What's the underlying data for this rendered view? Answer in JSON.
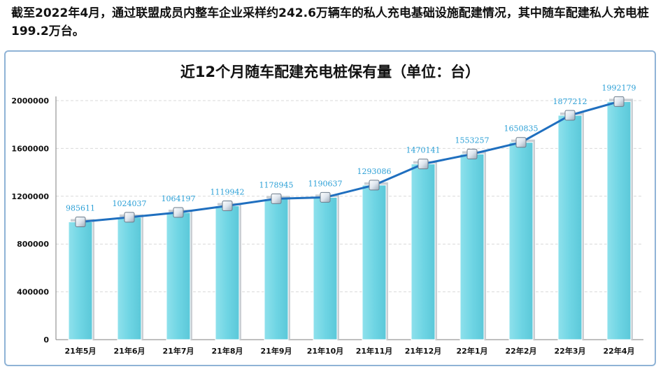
{
  "intro_text": "截至2022年4月，通过联盟成员内整车企业采样约242.6万辆车的私人充电基础设施配建情况，其中随车配建私人充电桩199.2万台。",
  "colors": {
    "bar_fill": "#6fd5e4",
    "bar_shadow": "#c9ced3",
    "line": "#1f6fbf",
    "data_label": "#2a9fd6",
    "frame_border": "#8fb3d6",
    "grid": "#d9d9d9"
  },
  "chart_data": {
    "type": "bar",
    "title": "近12个月随车配建充电桩保有量（单位：台）",
    "categories": [
      "21年5月",
      "21年6月",
      "21年7月",
      "21年8月",
      "21年9月",
      "21年10月",
      "21年11月",
      "21年12月",
      "22年1月",
      "22年2月",
      "22年3月",
      "22年4月"
    ],
    "values": [
      985611,
      1024037,
      1064197,
      1119942,
      1178945,
      1190637,
      1293086,
      1470141,
      1553257,
      1650835,
      1877212,
      1992179
    ],
    "data_labels": [
      "985611",
      "1024037",
      "1064197",
      "1119942",
      "1178945",
      "1190637",
      "1293086",
      "1470141",
      "1553257",
      "1650835",
      "1877212",
      "1992179"
    ],
    "overlay": "line with square markers through bar tops",
    "yticks": [
      0,
      400000,
      800000,
      1200000,
      1600000,
      2000000
    ],
    "ylim": [
      0,
      2000000
    ],
    "grid": "horizontal dashed",
    "legend": "none"
  }
}
